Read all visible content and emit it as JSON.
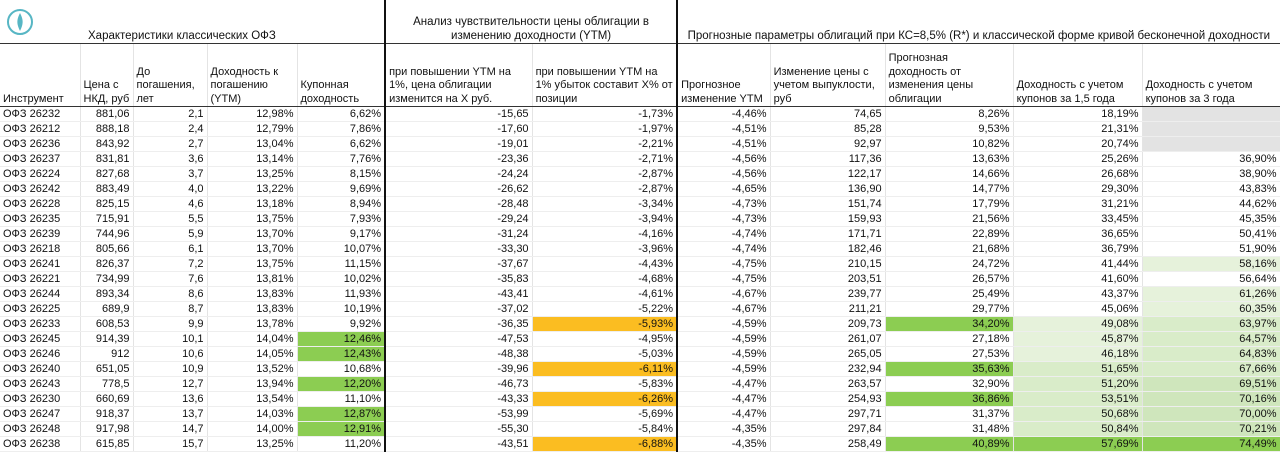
{
  "groups": [
    "Характеристики классических ОФЗ",
    "Анализ чувствительности цены облигации в изменению доходности (YTM)",
    "Прогнозные параметры облигаций при КС=8,5% (R*) и классической форме кривой бесконечной доходности"
  ],
  "columns": [
    "Инструмент",
    "Цена с НКД, руб",
    "До погашения, лет",
    "Доходность к погашению (YTM)",
    "Купонная доходность",
    "при повышении YTM на 1%, цена облигации изменится на X руб.",
    "при повышении YTM на 1% убыток составит X% от позиции",
    "Прогнозное изменение YTM",
    "Изменение цены с учетом выпуклости, руб",
    "Прогнозная доходность от изменения цены облигации",
    "Доходность с учетом купонов за 1,5 года",
    "Доходность с учетом купонов за 3 года"
  ],
  "rows": [
    [
      "ОФЗ 26232",
      "881,06",
      "2,1",
      "12,98%",
      "6,62%",
      "-15,65",
      "-1,73%",
      "-4,46%",
      "74,65",
      "8,26%",
      "18,19%",
      null
    ],
    [
      "ОФЗ 26212",
      "888,18",
      "2,4",
      "12,79%",
      "7,86%",
      "-17,60",
      "-1,97%",
      "-4,51%",
      "85,28",
      "9,53%",
      "21,31%",
      null
    ],
    [
      "ОФЗ 26236",
      "843,92",
      "2,7",
      "13,04%",
      "6,62%",
      "-19,01",
      "-2,21%",
      "-4,51%",
      "92,97",
      "10,82%",
      "20,74%",
      null
    ],
    [
      "ОФЗ 26237",
      "831,81",
      "3,6",
      "13,14%",
      "7,76%",
      "-23,36",
      "-2,71%",
      "-4,56%",
      "117,36",
      "13,63%",
      "25,26%",
      "36,90%"
    ],
    [
      "ОФЗ 26224",
      "827,68",
      "3,7",
      "13,25%",
      "8,15%",
      "-24,24",
      "-2,87%",
      "-4,56%",
      "122,17",
      "14,66%",
      "26,68%",
      "38,90%"
    ],
    [
      "ОФЗ 26242",
      "883,49",
      "4,0",
      "13,22%",
      "9,69%",
      "-26,62",
      "-2,87%",
      "-4,65%",
      "136,90",
      "14,77%",
      "29,30%",
      "43,83%"
    ],
    [
      "ОФЗ 26228",
      "825,15",
      "4,6",
      "13,18%",
      "8,94%",
      "-28,48",
      "-3,34%",
      "-4,73%",
      "151,74",
      "17,79%",
      "31,21%",
      "44,62%"
    ],
    [
      "ОФЗ 26235",
      "715,91",
      "5,5",
      "13,75%",
      "7,93%",
      "-29,24",
      "-3,94%",
      "-4,73%",
      "159,93",
      "21,56%",
      "33,45%",
      "45,35%"
    ],
    [
      "ОФЗ 26239",
      "744,96",
      "5,9",
      "13,70%",
      "9,17%",
      "-31,24",
      "-4,16%",
      "-4,74%",
      "171,71",
      "22,89%",
      "36,65%",
      "50,41%"
    ],
    [
      "ОФЗ 26218",
      "805,66",
      "6,1",
      "13,70%",
      "10,07%",
      "-33,30",
      "-3,96%",
      "-4,74%",
      "182,46",
      "21,68%",
      "36,79%",
      "51,90%"
    ],
    [
      "ОФЗ 26241",
      "826,37",
      "7,2",
      "13,75%",
      "11,15%",
      "-37,67",
      "-4,43%",
      "-4,75%",
      "210,15",
      "24,72%",
      "41,44%",
      "58,16%"
    ],
    [
      "ОФЗ 26221",
      "734,99",
      "7,6",
      "13,81%",
      "10,02%",
      "-35,83",
      "-4,68%",
      "-4,75%",
      "203,51",
      "26,57%",
      "41,60%",
      "56,64%"
    ],
    [
      "ОФЗ 26244",
      "893,34",
      "8,6",
      "13,83%",
      "11,93%",
      "-43,41",
      "-4,61%",
      "-4,67%",
      "239,77",
      "25,49%",
      "43,37%",
      "61,26%"
    ],
    [
      "ОФЗ 26225",
      "689,9",
      "8,7",
      "13,83%",
      "10,19%",
      "-37,02",
      "-5,22%",
      "-4,67%",
      "211,21",
      "29,77%",
      "45,06%",
      "60,35%"
    ],
    [
      "ОФЗ 26233",
      "608,53",
      "9,9",
      "13,78%",
      "9,92%",
      "-36,35",
      "-5,93%",
      "-4,59%",
      "209,73",
      "34,20%",
      "49,08%",
      "63,97%"
    ],
    [
      "ОФЗ 26245",
      "914,39",
      "10,1",
      "14,04%",
      "12,46%",
      "-47,53",
      "-4,95%",
      "-4,59%",
      "261,07",
      "27,18%",
      "45,87%",
      "64,57%"
    ],
    [
      "ОФЗ 26246",
      "912",
      "10,6",
      "14,05%",
      "12,43%",
      "-48,38",
      "-5,03%",
      "-4,59%",
      "265,05",
      "27,53%",
      "46,18%",
      "64,83%"
    ],
    [
      "ОФЗ 26240",
      "651,05",
      "10,9",
      "13,52%",
      "10,68%",
      "-39,96",
      "-6,11%",
      "-4,59%",
      "232,94",
      "35,63%",
      "51,65%",
      "67,66%"
    ],
    [
      "ОФЗ 26243",
      "778,5",
      "12,7",
      "13,94%",
      "12,20%",
      "-46,73",
      "-5,83%",
      "-4,47%",
      "263,57",
      "32,90%",
      "51,20%",
      "69,51%"
    ],
    [
      "ОФЗ 26230",
      "660,69",
      "13,6",
      "13,54%",
      "11,10%",
      "-43,33",
      "-6,26%",
      "-4,47%",
      "254,93",
      "36,86%",
      "53,51%",
      "70,16%"
    ],
    [
      "ОФЗ 26247",
      "918,37",
      "13,7",
      "14,03%",
      "12,87%",
      "-53,99",
      "-5,69%",
      "-4,47%",
      "297,71",
      "31,37%",
      "50,68%",
      "70,00%"
    ],
    [
      "ОФЗ 26248",
      "917,98",
      "14,7",
      "14,00%",
      "12,91%",
      "-55,30",
      "-5,84%",
      "-4,35%",
      "297,84",
      "31,48%",
      "50,84%",
      "70,21%"
    ],
    [
      "ОФЗ 26238",
      "615,85",
      "15,7",
      "13,25%",
      "11,20%",
      "-43,51",
      "-6,88%",
      "-4,35%",
      "258,49",
      "40,89%",
      "57,69%",
      "74,49%"
    ]
  ]
}
